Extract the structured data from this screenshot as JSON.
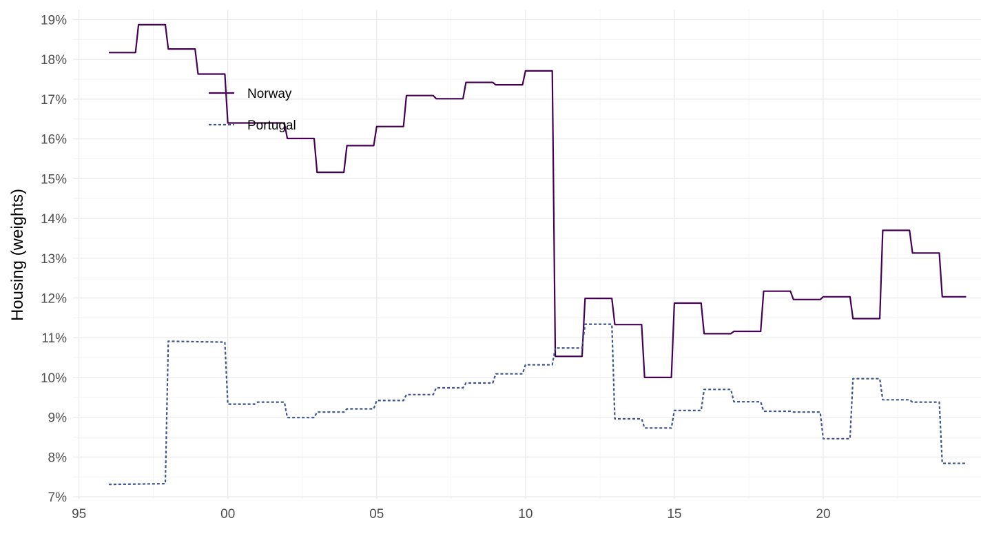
{
  "chart_data": {
    "type": "line",
    "title": "",
    "xlabel": "",
    "ylabel": "Housing (weights)",
    "x_ticks": [
      "95",
      "00",
      "05",
      "10",
      "15",
      "20"
    ],
    "y_ticks": [
      "7%",
      "8%",
      "9%",
      "10%",
      "11%",
      "12%",
      "13%",
      "14%",
      "15%",
      "16%",
      "17%",
      "18%",
      "19%"
    ],
    "xlim": [
      1994.8,
      2025.3
    ],
    "ylim": [
      6.95,
      19.25
    ],
    "grid": true,
    "legend_position": "inside top-left",
    "series": [
      {
        "name": "Norway",
        "color": "#440154",
        "dash": "solid",
        "points": [
          [
            1996.0,
            18.17
          ],
          [
            1996.9,
            18.17
          ],
          [
            1997.0,
            18.87
          ],
          [
            1997.9,
            18.87
          ],
          [
            1998.0,
            18.26
          ],
          [
            1998.9,
            18.26
          ],
          [
            1999.0,
            17.63
          ],
          [
            1999.9,
            17.63
          ],
          [
            2000.0,
            16.4
          ],
          [
            2001.9,
            16.4
          ],
          [
            2002.0,
            16.01
          ],
          [
            2002.9,
            16.01
          ],
          [
            2003.0,
            15.16
          ],
          [
            2003.9,
            15.16
          ],
          [
            2004.0,
            15.83
          ],
          [
            2004.9,
            15.83
          ],
          [
            2005.0,
            16.31
          ],
          [
            2005.9,
            16.31
          ],
          [
            2006.0,
            17.09
          ],
          [
            2006.9,
            17.09
          ],
          [
            2007.0,
            17.01
          ],
          [
            2007.9,
            17.01
          ],
          [
            2008.0,
            17.42
          ],
          [
            2008.9,
            17.42
          ],
          [
            2009.0,
            17.36
          ],
          [
            2009.9,
            17.36
          ],
          [
            2010.0,
            17.71
          ],
          [
            2010.9,
            17.71
          ],
          [
            2011.0,
            10.53
          ],
          [
            2011.9,
            10.53
          ],
          [
            2012.0,
            11.99
          ],
          [
            2012.9,
            11.99
          ],
          [
            2013.0,
            11.33
          ],
          [
            2013.9,
            11.33
          ],
          [
            2014.0,
            10.0
          ],
          [
            2014.9,
            10.0
          ],
          [
            2015.0,
            11.87
          ],
          [
            2015.9,
            11.87
          ],
          [
            2016.0,
            11.1
          ],
          [
            2016.9,
            11.1
          ],
          [
            2017.0,
            11.16
          ],
          [
            2017.9,
            11.16
          ],
          [
            2018.0,
            12.17
          ],
          [
            2018.9,
            12.17
          ],
          [
            2019.0,
            11.96
          ],
          [
            2019.9,
            11.96
          ],
          [
            2020.0,
            12.03
          ],
          [
            2020.9,
            12.03
          ],
          [
            2021.0,
            11.48
          ],
          [
            2021.9,
            11.48
          ],
          [
            2022.0,
            13.7
          ],
          [
            2022.9,
            13.7
          ],
          [
            2023.0,
            13.13
          ],
          [
            2023.9,
            13.13
          ],
          [
            2024.0,
            12.03
          ],
          [
            2024.8,
            12.03
          ]
        ]
      },
      {
        "name": "Portugal",
        "color": "#3b528b",
        "dash": "dotted",
        "points": [
          [
            1996.0,
            7.31
          ],
          [
            1997.9,
            7.33
          ],
          [
            1998.0,
            10.91
          ],
          [
            1999.9,
            10.89
          ],
          [
            2000.0,
            9.33
          ],
          [
            2000.9,
            9.33
          ],
          [
            2001.0,
            9.38
          ],
          [
            2001.9,
            9.38
          ],
          [
            2002.0,
            8.99
          ],
          [
            2002.9,
            8.99
          ],
          [
            2003.0,
            9.13
          ],
          [
            2003.9,
            9.13
          ],
          [
            2004.0,
            9.21
          ],
          [
            2004.9,
            9.21
          ],
          [
            2005.0,
            9.42
          ],
          [
            2005.9,
            9.42
          ],
          [
            2006.0,
            9.57
          ],
          [
            2006.9,
            9.57
          ],
          [
            2007.0,
            9.74
          ],
          [
            2007.9,
            9.74
          ],
          [
            2008.0,
            9.86
          ],
          [
            2008.9,
            9.86
          ],
          [
            2009.0,
            10.09
          ],
          [
            2009.9,
            10.09
          ],
          [
            2010.0,
            10.32
          ],
          [
            2010.9,
            10.32
          ],
          [
            2011.0,
            10.74
          ],
          [
            2011.9,
            10.74
          ],
          [
            2012.0,
            11.34
          ],
          [
            2012.9,
            11.34
          ],
          [
            2013.0,
            8.96
          ],
          [
            2013.9,
            8.96
          ],
          [
            2014.0,
            8.73
          ],
          [
            2014.9,
            8.73
          ],
          [
            2015.0,
            9.17
          ],
          [
            2015.9,
            9.17
          ],
          [
            2016.0,
            9.7
          ],
          [
            2016.9,
            9.7
          ],
          [
            2017.0,
            9.39
          ],
          [
            2017.9,
            9.39
          ],
          [
            2018.0,
            9.15
          ],
          [
            2018.9,
            9.15
          ],
          [
            2019.0,
            9.13
          ],
          [
            2019.9,
            9.13
          ],
          [
            2020.0,
            8.46
          ],
          [
            2020.9,
            8.46
          ],
          [
            2021.0,
            9.97
          ],
          [
            2021.9,
            9.97
          ],
          [
            2022.0,
            9.44
          ],
          [
            2022.9,
            9.44
          ],
          [
            2023.0,
            9.38
          ],
          [
            2023.9,
            9.38
          ],
          [
            2024.0,
            7.84
          ],
          [
            2024.8,
            7.84
          ]
        ]
      }
    ]
  }
}
